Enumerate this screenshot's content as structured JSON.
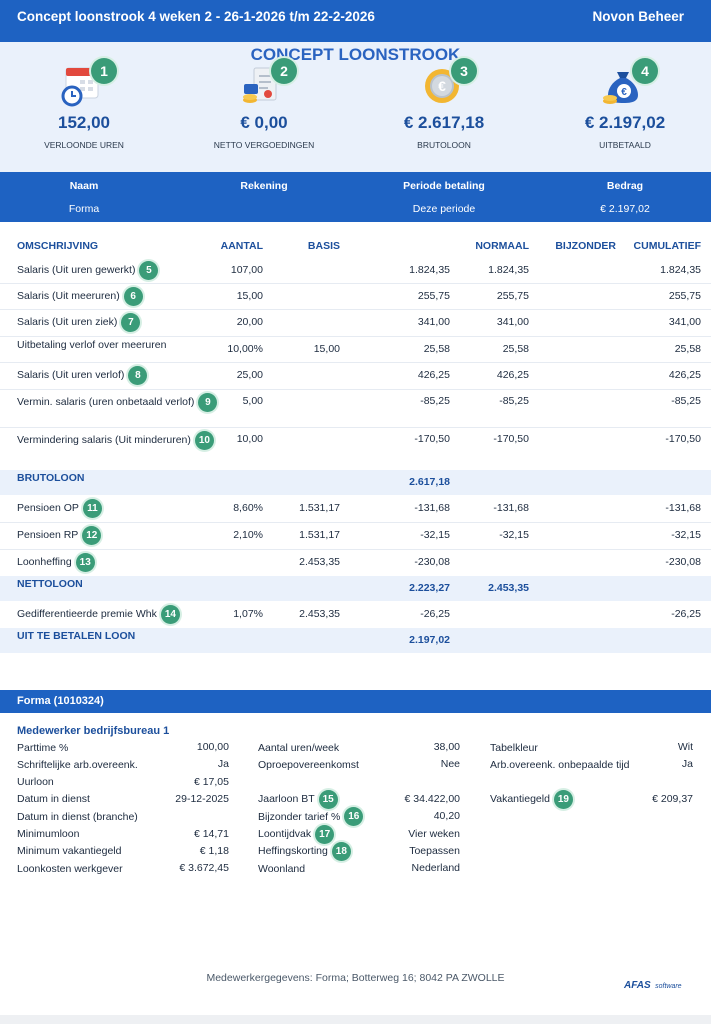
{
  "header": {
    "title": "Concept loonstrook 4 weken 2 - 26-1-2026 t/m 22-2-2026",
    "company": "Novon Beheer"
  },
  "summary": {
    "title": "CONCEPT LOONSTROOK",
    "items": [
      {
        "badge": "1",
        "value": "152,00",
        "label": "VERLOONDE UREN"
      },
      {
        "badge": "2",
        "value": "€ 0,00",
        "label": "NETTO VERGOEDINGEN"
      },
      {
        "badge": "3",
        "value": "€ 2.617,18",
        "label": "BRUTOLOON"
      },
      {
        "badge": "4",
        "value": "€ 2.197,02",
        "label": "UITBETAALD"
      }
    ]
  },
  "payment": {
    "columns": [
      "Naam",
      "Rekening",
      "Periode betaling",
      "Bedrag"
    ],
    "row": [
      "Forma",
      null,
      "Deze periode",
      "€ 2.197,02"
    ]
  },
  "lines": {
    "columns": [
      "OMSCHRIJVING",
      "AANTAL",
      "BASIS",
      null,
      "NORMAAL",
      "BIJZONDER",
      "CUMULATIEF"
    ],
    "rows": [
      {
        "cells": [
          "Salaris (Uit uren gewerkt)",
          "107,00",
          null,
          "1.824,35",
          "1.824,35",
          null,
          "1.824,35"
        ],
        "badge": "5"
      },
      {
        "cells": [
          "Salaris (Uit meeruren)",
          "15,00",
          null,
          "255,75",
          "255,75",
          null,
          "255,75"
        ],
        "badge": "6"
      },
      {
        "cells": [
          "Salaris (Uit uren ziek)",
          "20,00",
          null,
          "341,00",
          "341,00",
          null,
          "341,00"
        ],
        "badge": "7"
      },
      {
        "cells": [
          "Uitbetaling verlof over meeruren",
          "10,00%",
          "15,00",
          "25,58",
          "25,58",
          null,
          "25,58"
        ]
      },
      {
        "cells": [
          "Salaris (Uit uren verlof)",
          "25,00",
          null,
          "426,25",
          "426,25",
          null,
          "426,25"
        ],
        "badge": "8"
      },
      {
        "cells": [
          "Vermin. salaris (uren onbetaald verlof)",
          "5,00",
          null,
          "-85,25",
          "-85,25",
          null,
          "-85,25"
        ],
        "badge": "9"
      },
      {
        "cells": [
          "Vermindering salaris (Uit minderuren)",
          "10,00",
          null,
          "-170,50",
          "-170,50",
          null,
          "-170,50"
        ],
        "badge": "10"
      },
      {
        "cells": [
          "BRUTOLOON",
          null,
          null,
          "2.617,18",
          null,
          null,
          null
        ],
        "total": true
      },
      {
        "cells": [
          "Pensioen OP",
          "8,60%",
          "1.531,17",
          "-131,68",
          "-131,68",
          null,
          "-131,68"
        ],
        "badge": "11"
      },
      {
        "cells": [
          "Pensioen RP",
          "2,10%",
          "1.531,17",
          "-32,15",
          "-32,15",
          null,
          "-32,15"
        ],
        "badge": "12"
      },
      {
        "cells": [
          "Loonheffing",
          null,
          "2.453,35",
          "-230,08",
          null,
          null,
          "-230,08"
        ],
        "badge": "13"
      },
      {
        "cells": [
          "NETTOLOON",
          null,
          null,
          "2.223,27",
          "2.453,35",
          null,
          null
        ],
        "total": true
      },
      {
        "cells": [
          "Gedifferentieerde premie Whk",
          "1,07%",
          "2.453,35",
          "-26,25",
          null,
          null,
          "-26,25"
        ],
        "badge": "14"
      },
      {
        "cells": [
          "UIT TE BETALEN LOON",
          null,
          null,
          "2.197,02",
          null,
          null,
          null
        ],
        "total": true
      }
    ]
  },
  "employee": {
    "section": "Forma (1010324)",
    "title": "Medewerker bedrijfsbureau 1",
    "columns": [
      [
        {
          "label": "Parttime %",
          "value": "100,00"
        },
        {
          "label": "Schriftelijke arb.overeenk.",
          "value": "Ja"
        },
        {
          "label": "Uurloon",
          "value": "€ 17,05"
        },
        {
          "label": "Datum in dienst",
          "value": "29-12-2025"
        },
        {
          "label": "Datum in dienst (branche)"
        },
        {
          "label": "Minimumloon",
          "value": "€ 14,71"
        },
        {
          "label": "Minimum vakantiegeld",
          "value": "€ 1,18"
        },
        {
          "label": "Loonkosten werkgever",
          "value": "€ 3.672,45"
        }
      ],
      [
        {
          "label": "Aantal uren/week",
          "value": "38,00"
        },
        {
          "label": "Oproepovereenkomst",
          "value": "Nee"
        },
        null,
        {
          "label": "Jaarloon BT",
          "value": "€ 34.422,00",
          "badge": "15"
        },
        {
          "label": "Bijzonder tarief %",
          "value": "40,20",
          "badge": "16"
        },
        {
          "label": "Loontijdvak",
          "value": "Vier weken",
          "badge": "17"
        },
        {
          "label": "Heffingskorting",
          "value": "Toepassen",
          "badge": "18"
        },
        {
          "label": "Woonland",
          "value": "Nederland"
        }
      ],
      [
        {
          "label": "Tabelkleur",
          "value": "Wit"
        },
        {
          "label": "Arb.overeenk. onbepaalde tijd",
          "value": "Ja"
        },
        null,
        {
          "label": "Vakantiegeld",
          "value": "€ 209,37",
          "badge": "19"
        }
      ]
    ]
  },
  "footer": {
    "address": "Medewerkergegevens: Forma; Botterweg 16; 8042 PA  ZWOLLE",
    "logo": "AFAS",
    "logo_sub": "software"
  }
}
